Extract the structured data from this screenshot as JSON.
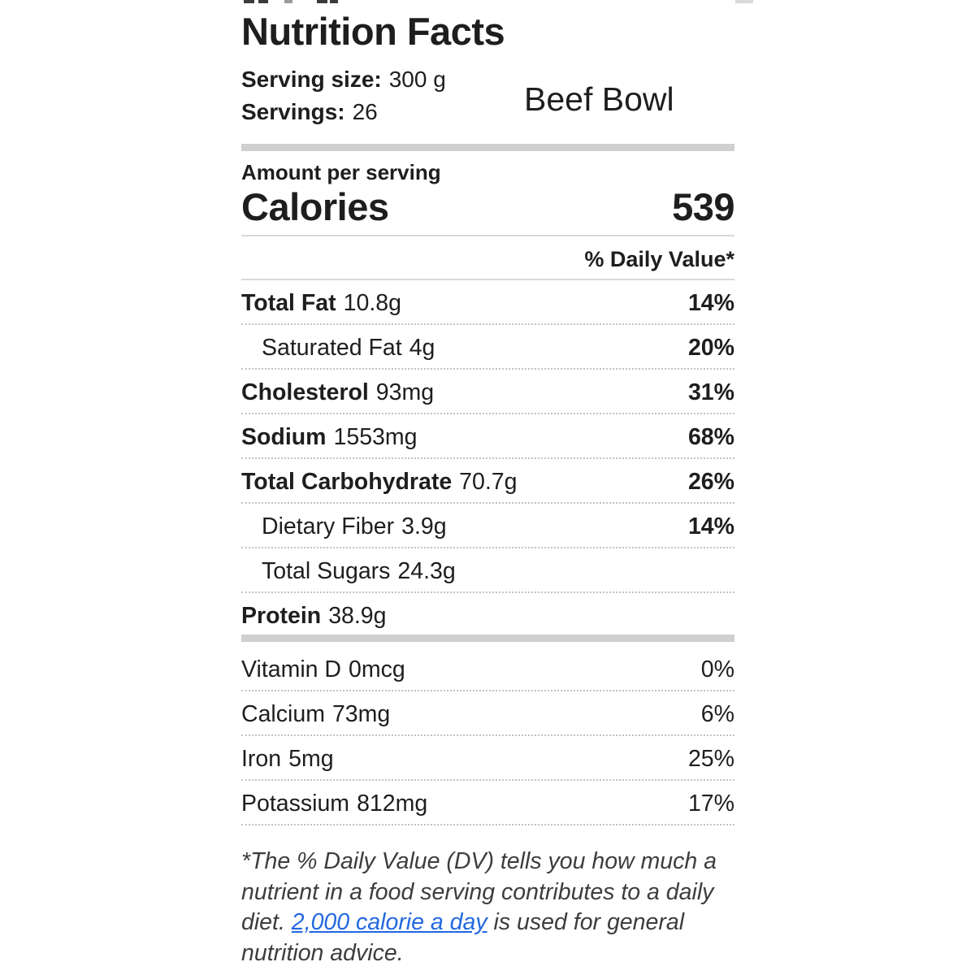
{
  "header": {
    "title": "Nutrition Facts",
    "serving_size_label": "Serving size:",
    "serving_size_value": "300 g",
    "servings_label": "Servings:",
    "servings_value": "26",
    "product_name": "Beef Bowl"
  },
  "calories_section": {
    "amount_per_serving_label": "Amount per serving",
    "calories_label": "Calories",
    "calories_value": "539",
    "daily_value_header": "% Daily Value*"
  },
  "nutrients": [
    {
      "name": "Total Fat",
      "amount": "10.8g",
      "dv": "14%"
    },
    {
      "name": "Saturated Fat",
      "amount": "4g",
      "dv": "20%"
    },
    {
      "name": "Cholesterol",
      "amount": "93mg",
      "dv": "31%"
    },
    {
      "name": "Sodium",
      "amount": "1553mg",
      "dv": "68%"
    },
    {
      "name": "Total Carbohydrate",
      "amount": "70.7g",
      "dv": "26%"
    },
    {
      "name": "Dietary Fiber",
      "amount": "3.9g",
      "dv": "14%"
    },
    {
      "name": "Total Sugars",
      "amount": "24.3g",
      "dv": ""
    },
    {
      "name": "Protein",
      "amount": "38.9g",
      "dv": ""
    }
  ],
  "micronutrients": [
    {
      "name": "Vitamin D",
      "amount": "0mcg",
      "dv": "0%"
    },
    {
      "name": "Calcium",
      "amount": "73mg",
      "dv": "6%"
    },
    {
      "name": "Iron",
      "amount": "5mg",
      "dv": "25%"
    },
    {
      "name": "Potassium",
      "amount": "812mg",
      "dv": "17%"
    }
  ],
  "footnote": {
    "text_before_link": "*The % Daily Value (DV) tells you how much a nutrient in a food serving contributes to a daily diet. ",
    "link_text": "2,000 calorie a day",
    "text_after_link": " is used for general nutrition advice.",
    "link_color": "#2368e0"
  }
}
